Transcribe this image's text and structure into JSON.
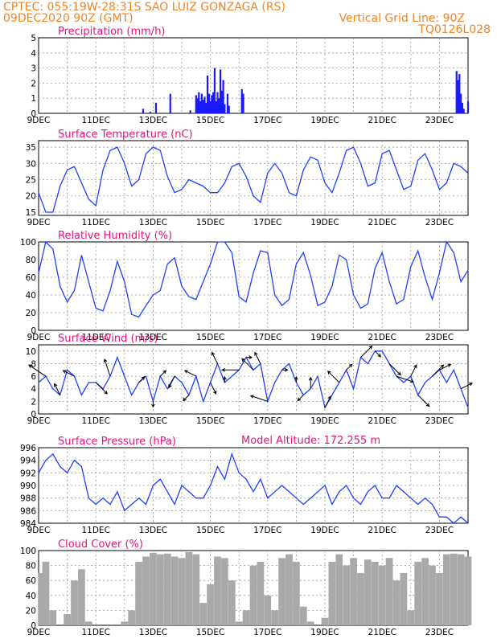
{
  "header": {
    "line1_left": "CPTEC:   055:19W-28:31S  SAO LUIZ GONZAGA (RS)",
    "line2_left": "09DEC2020 90Z (GMT)",
    "line2_right": "Vertical Grid Line: 90Z",
    "line3_right": "TQ0126L028",
    "model_altitude": "Model Altitude: 172.255 m"
  },
  "chart_data": [
    {
      "type": "bar",
      "title": "Precipitation (mm/h)",
      "ylim": [
        0,
        5
      ],
      "yticks": [
        "0",
        "1",
        "2",
        "3",
        "4",
        "5"
      ],
      "xticks": [
        "9DEC",
        "11DEC",
        "13DEC",
        "15DEC",
        "17DEC",
        "19DEC",
        "21DEC",
        "23DEC"
      ],
      "x": [
        3.65,
        3.9,
        4.1,
        4.6,
        5.3,
        5.5,
        5.55,
        5.6,
        5.65,
        5.7,
        5.75,
        5.8,
        5.85,
        5.9,
        5.95,
        6.0,
        6.05,
        6.1,
        6.15,
        6.2,
        6.25,
        6.3,
        6.35,
        6.4,
        6.45,
        6.5,
        6.6,
        6.65,
        7.1,
        7.15,
        14.6,
        14.65,
        14.7,
        14.75,
        14.8,
        14.85,
        15.0
      ],
      "values": [
        0.3,
        0.1,
        0.7,
        1.3,
        0.2,
        1.2,
        1.0,
        1.4,
        0.8,
        1.3,
        0.9,
        1.1,
        0.7,
        2.5,
        1.3,
        0.8,
        1.2,
        1.4,
        3.0,
        0.8,
        1.4,
        1.0,
        2.9,
        1.5,
        2.2,
        0.6,
        1.3,
        0.5,
        1.6,
        1.3,
        2.8,
        2.2,
        2.6,
        1.3,
        0.7,
        0.3,
        0.8
      ]
    },
    {
      "type": "line",
      "title": "Surface Temperature (nC)",
      "ylim": [
        14,
        37
      ],
      "yticks": [
        "15",
        "20",
        "25",
        "30",
        "35"
      ],
      "xticks": [
        "9DEC",
        "11DEC",
        "13DEC",
        "15DEC",
        "17DEC",
        "19DEC",
        "21DEC",
        "23DEC"
      ],
      "x": [
        0,
        0.25,
        0.5,
        0.75,
        1.0,
        1.25,
        1.5,
        1.75,
        2.0,
        2.25,
        2.5,
        2.75,
        3.0,
        3.25,
        3.5,
        3.75,
        4.0,
        4.25,
        4.5,
        4.75,
        5.0,
        5.25,
        5.5,
        5.75,
        6.0,
        6.25,
        6.5,
        6.75,
        7.0,
        7.25,
        7.5,
        7.75,
        8.0,
        8.25,
        8.5,
        8.75,
        9.0,
        9.25,
        9.5,
        9.75,
        10.0,
        10.25,
        10.5,
        10.75,
        11.0,
        11.25,
        11.5,
        11.75,
        12.0,
        12.25,
        12.5,
        12.75,
        13.0,
        13.25,
        13.5,
        13.75,
        14.0,
        14.25,
        14.5,
        14.75,
        15.0
      ],
      "values": [
        21,
        15,
        15,
        23,
        28,
        29,
        24,
        19,
        17,
        28,
        34,
        35,
        30,
        23,
        25,
        33,
        35,
        34,
        26,
        21,
        22,
        25,
        24,
        23,
        21,
        21,
        24,
        29,
        30,
        26,
        20,
        18,
        27,
        30,
        27,
        21,
        20,
        28,
        32,
        31,
        24,
        21,
        27,
        34,
        35,
        30,
        23,
        24,
        33,
        34,
        28,
        22,
        23,
        31,
        33,
        28,
        22,
        24,
        30,
        29,
        27
      ],
      "ylabel": ""
    },
    {
      "type": "line",
      "title": "Relative Humidity (%)",
      "ylim": [
        0,
        100
      ],
      "yticks": [
        "0",
        "20",
        "40",
        "60",
        "80",
        "100"
      ],
      "xticks": [
        "9DEC",
        "11DEC",
        "13DEC",
        "15DEC",
        "17DEC",
        "19DEC",
        "21DEC",
        "23DEC"
      ],
      "x": [
        0,
        0.25,
        0.5,
        0.75,
        1.0,
        1.25,
        1.5,
        1.75,
        2.0,
        2.25,
        2.5,
        2.75,
        3.0,
        3.25,
        3.5,
        3.75,
        4.0,
        4.25,
        4.5,
        4.75,
        5.0,
        5.25,
        5.5,
        5.75,
        6.0,
        6.25,
        6.5,
        6.75,
        7.0,
        7.25,
        7.5,
        7.75,
        8.0,
        8.25,
        8.5,
        8.75,
        9.0,
        9.25,
        9.5,
        9.75,
        10.0,
        10.25,
        10.5,
        10.75,
        11.0,
        11.25,
        11.5,
        11.75,
        12.0,
        12.25,
        12.5,
        12.75,
        13.0,
        13.25,
        13.5,
        13.75,
        14.0,
        14.25,
        14.5,
        14.75,
        15.0
      ],
      "values": [
        65,
        100,
        92,
        50,
        32,
        45,
        85,
        55,
        25,
        22,
        45,
        78,
        55,
        18,
        15,
        28,
        40,
        45,
        75,
        82,
        50,
        38,
        35,
        55,
        75,
        100,
        100,
        88,
        38,
        32,
        65,
        90,
        88,
        40,
        28,
        35,
        75,
        88,
        62,
        28,
        32,
        50,
        85,
        80,
        40,
        25,
        30,
        70,
        88,
        55,
        30,
        35,
        72,
        90,
        60,
        35,
        65,
        100,
        88,
        55,
        68
      ],
      "ylabel": ""
    },
    {
      "type": "line",
      "title": "Surface Wind (m/s)",
      "ylim": [
        0,
        11
      ],
      "yticks": [
        "0",
        "2",
        "4",
        "6",
        "8",
        "10"
      ],
      "xticks": [
        "9DEC",
        "11DEC",
        "13DEC",
        "15DEC",
        "17DEC",
        "19DEC",
        "21DEC",
        "23DEC"
      ],
      "x": [
        0,
        0.25,
        0.5,
        0.75,
        1.0,
        1.25,
        1.5,
        1.75,
        2.0,
        2.25,
        2.5,
        2.75,
        3.0,
        3.25,
        3.5,
        3.75,
        4.0,
        4.25,
        4.5,
        4.75,
        5.0,
        5.25,
        5.5,
        5.75,
        6.0,
        6.25,
        6.5,
        6.75,
        7.0,
        7.25,
        7.5,
        7.75,
        8.0,
        8.25,
        8.5,
        8.75,
        9.0,
        9.25,
        9.5,
        9.75,
        10.0,
        10.25,
        10.5,
        10.75,
        11.0,
        11.25,
        11.5,
        11.75,
        12.0,
        12.25,
        12.5,
        12.75,
        13.0,
        13.25,
        13.5,
        13.75,
        14.0,
        14.25,
        14.5,
        14.75,
        15.0
      ],
      "values": [
        5,
        6,
        4,
        3,
        7,
        6,
        3,
        5,
        5,
        4,
        6,
        9,
        6,
        3,
        5,
        6,
        2,
        6,
        4,
        6,
        5,
        3,
        6,
        2,
        5,
        8,
        5,
        6,
        7,
        9,
        7,
        8,
        2,
        5,
        7,
        8,
        5,
        3,
        4,
        6,
        1,
        3,
        5,
        7,
        4,
        9,
        8,
        10,
        10,
        8,
        6,
        5,
        6,
        3,
        5,
        6,
        7,
        5,
        7,
        4,
        1
      ],
      "arrow_x": [
        0.25,
        0.75,
        1.25,
        2.0,
        2.5,
        3.5,
        4.0,
        4.25,
        4.75,
        5.25,
        5.5,
        6.0,
        6.25,
        6.5,
        7.0,
        7.25,
        7.5,
        7.75,
        8.0,
        8.5,
        9.0,
        9.25,
        9.5,
        10.0,
        10.5,
        10.75,
        11.25,
        11.75,
        12.25,
        12.5,
        13.0,
        13.25,
        13.75,
        14.0,
        14.75
      ],
      "arrow_u": [
        -3,
        -1,
        -2,
        2,
        -1,
        1,
        0,
        1,
        -1,
        -1,
        -2,
        1,
        -1,
        0,
        -3,
        1,
        -2,
        -1,
        -3,
        1,
        0,
        -1,
        0,
        1,
        -2,
        1,
        2,
        1,
        2,
        3,
        1,
        2,
        2,
        2,
        2
      ],
      "arrow_v": [
        2,
        2,
        1,
        -2,
        3,
        1,
        -1,
        1,
        -2,
        -1,
        1,
        -2,
        2,
        1,
        0,
        0,
        2,
        2,
        1,
        0,
        1,
        -1,
        2,
        2,
        2,
        1,
        2,
        -1,
        -2,
        -1,
        2,
        -2,
        2,
        1,
        1
      ],
      "ylabel": ""
    },
    {
      "type": "line",
      "title": "Surface Pressure (hPa)",
      "ylim": [
        984,
        996
      ],
      "yticks": [
        "984",
        "986",
        "988",
        "990",
        "992",
        "994",
        "996"
      ],
      "xticks": [
        "9DEC",
        "11DEC",
        "13DEC",
        "15DEC",
        "17DEC",
        "19DEC",
        "21DEC",
        "23DEC"
      ],
      "x": [
        0,
        0.25,
        0.5,
        0.75,
        1.0,
        1.25,
        1.5,
        1.75,
        2.0,
        2.25,
        2.5,
        2.75,
        3.0,
        3.25,
        3.5,
        3.75,
        4.0,
        4.25,
        4.5,
        4.75,
        5.0,
        5.25,
        5.5,
        5.75,
        6.0,
        6.25,
        6.5,
        6.75,
        7.0,
        7.25,
        7.5,
        7.75,
        8.0,
        8.25,
        8.5,
        8.75,
        9.0,
        9.25,
        9.5,
        9.75,
        10.0,
        10.25,
        10.5,
        10.75,
        11.0,
        11.25,
        11.5,
        11.75,
        12.0,
        12.25,
        12.5,
        12.75,
        13.0,
        13.25,
        13.5,
        13.75,
        14.0,
        14.25,
        14.5,
        14.75,
        15.0
      ],
      "values": [
        992,
        994,
        995,
        993,
        992,
        994,
        993,
        988,
        987,
        988,
        987,
        989,
        986,
        987,
        988,
        987,
        990,
        991,
        989,
        987,
        990,
        989,
        988,
        988,
        990,
        993,
        991,
        995,
        992,
        991,
        989,
        991,
        988,
        989,
        990,
        989,
        988,
        987,
        988,
        989,
        990,
        987,
        989,
        990,
        988,
        987,
        989,
        990,
        988,
        988,
        990,
        989,
        988,
        987,
        988,
        987,
        985,
        985,
        984,
        985,
        984
      ],
      "ylabel": ""
    },
    {
      "type": "bar",
      "title": "Cloud Cover (%)",
      "ylim": [
        0,
        100
      ],
      "yticks": [
        "0",
        "20",
        "40",
        "60",
        "80",
        "100"
      ],
      "xticks": [
        "9DEC",
        "11DEC",
        "13DEC",
        "15DEC",
        "17DEC",
        "19DEC",
        "21DEC",
        "23DEC"
      ],
      "x": [
        0.1,
        0.25,
        0.5,
        0.75,
        1.0,
        1.25,
        1.5,
        1.75,
        2.0,
        2.25,
        2.5,
        2.75,
        3.0,
        3.25,
        3.5,
        3.75,
        4.0,
        4.25,
        4.5,
        4.75,
        5.0,
        5.25,
        5.5,
        5.75,
        6.0,
        6.25,
        6.5,
        6.75,
        7.0,
        7.25,
        7.5,
        7.75,
        8.0,
        8.25,
        8.5,
        8.75,
        9.0,
        9.25,
        9.5,
        9.75,
        10.0,
        10.25,
        10.5,
        10.75,
        11.0,
        11.25,
        11.5,
        11.75,
        12.0,
        12.25,
        12.5,
        12.75,
        13.0,
        13.25,
        13.5,
        13.75,
        14.0,
        14.25,
        14.5,
        14.75,
        15.0
      ],
      "values": [
        70,
        85,
        20,
        0,
        15,
        60,
        75,
        5,
        0,
        0,
        0,
        0,
        5,
        20,
        85,
        92,
        97,
        95,
        96,
        92,
        90,
        98,
        95,
        30,
        55,
        92,
        90,
        60,
        5,
        20,
        80,
        85,
        40,
        20,
        90,
        95,
        85,
        25,
        5,
        0,
        10,
        85,
        95,
        80,
        90,
        70,
        88,
        85,
        80,
        90,
        60,
        70,
        20,
        85,
        90,
        80,
        70,
        95,
        96,
        95,
        92
      ],
      "ylabel": ""
    }
  ]
}
